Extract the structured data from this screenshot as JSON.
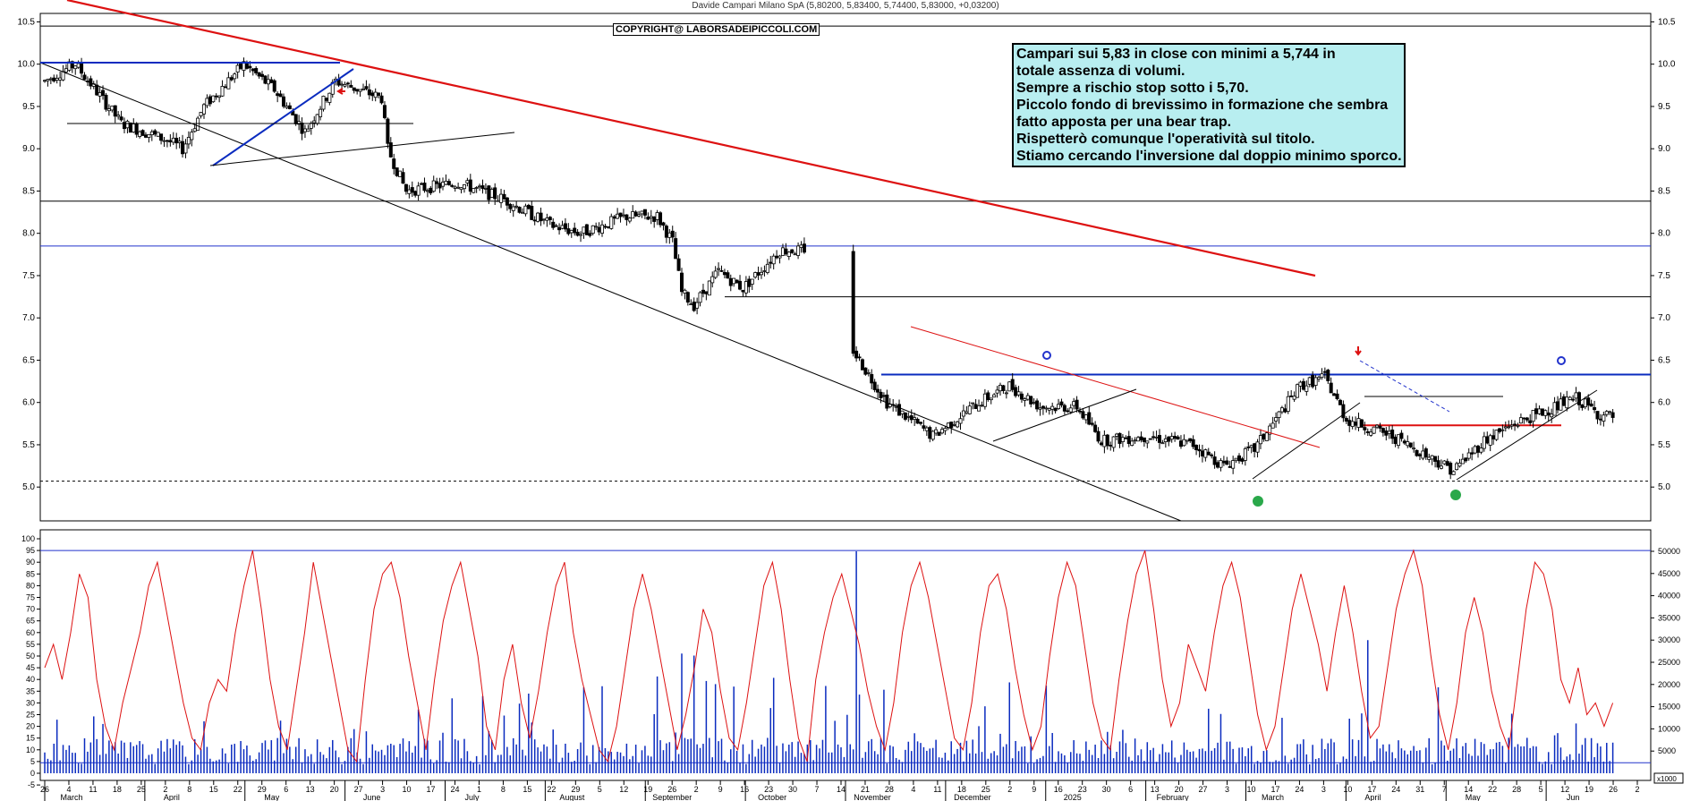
{
  "header": {
    "title": "Davide Campari Milano SpA (5,80200, 5,83400, 5,74400, 5,83000, +0,03200)"
  },
  "copyright": "COPYRIGHT@ LABORSADEIPICCOLI.COM",
  "note": {
    "lines": [
      "Campari sui 5,83 in close con minimi a 5,744 in",
      "totale assenza di volumi.",
      "Sempre a rischio stop sotto i 5,70.",
      "Piccolo fondo di brevissimo in formazione che sembra",
      "fatto apposta per una bear trap.",
      "Rispetterò comunque l'operatività sul titolo.",
      "Stiamo cercando l'inversione dal doppio minimo sporco."
    ]
  },
  "chart_data": [
    {
      "type": "candlestick",
      "title": "Davide Campari Milano SpA (5,80200, 5,83400, 5,74400, 5,83000, +0,03200)",
      "ylim": [
        4.6,
        10.6
      ],
      "y_ticks": [
        "10.5",
        "10.0",
        "9.5",
        "9.0",
        "8.5",
        "8.0",
        "7.5",
        "7.0",
        "6.5",
        "6.0",
        "5.5",
        "5.0"
      ],
      "months": [
        "March",
        "April",
        "May",
        "June",
        "July",
        "August",
        "September",
        "October",
        "November",
        "December",
        "2025",
        "February",
        "March",
        "April",
        "May",
        "Jun"
      ],
      "day_ticks": [
        "26",
        "4",
        "11",
        "18",
        "25",
        "2",
        "8",
        "15",
        "22",
        "29",
        "6",
        "13",
        "20",
        "27",
        "3",
        "10",
        "17",
        "24",
        "1",
        "8",
        "15",
        "22",
        "29",
        "5",
        "12",
        "19",
        "26",
        "2",
        "9",
        "16",
        "23",
        "30",
        "7",
        "14",
        "21",
        "28",
        "4",
        "11",
        "18",
        "25",
        "2",
        "9",
        "16",
        "23",
        "30",
        "6",
        "13",
        "20",
        "27",
        "3",
        "10",
        "17",
        "24",
        "3",
        "10",
        "17",
        "24",
        "31",
        "7",
        "14",
        "22",
        "28",
        "5",
        "12",
        "19",
        "26",
        "2"
      ],
      "horizontal_levels": [
        10.45,
        8.38,
        7.85,
        7.25,
        6.33,
        5.73,
        5.07
      ],
      "price_path": [
        [
          0,
          9.8
        ],
        [
          10,
          10.0
        ],
        [
          25,
          9.3
        ],
        [
          40,
          9.1
        ],
        [
          45,
          9.0
        ],
        [
          52,
          9.5
        ],
        [
          65,
          10.0
        ],
        [
          75,
          9.7
        ],
        [
          85,
          9.2
        ],
        [
          95,
          9.8
        ],
        [
          110,
          9.6
        ],
        [
          112,
          9.0
        ],
        [
          118,
          8.5
        ],
        [
          135,
          8.6
        ],
        [
          150,
          8.4
        ],
        [
          165,
          8.1
        ],
        [
          175,
          8.0
        ],
        [
          190,
          8.2
        ],
        [
          200,
          8.2
        ],
        [
          205,
          7.9
        ],
        [
          208,
          7.3
        ],
        [
          212,
          7.15
        ],
        [
          220,
          7.55
        ],
        [
          228,
          7.35
        ],
        [
          240,
          7.8
        ],
        [
          247,
          7.8
        ],
        [
          265,
          6.55
        ],
        [
          275,
          6.0
        ],
        [
          290,
          5.6
        ],
        [
          305,
          6.0
        ],
        [
          315,
          6.2
        ],
        [
          325,
          5.95
        ],
        [
          337,
          5.95
        ],
        [
          345,
          5.55
        ],
        [
          360,
          5.6
        ],
        [
          375,
          5.5
        ],
        [
          385,
          5.25
        ],
        [
          395,
          5.45
        ],
        [
          410,
          6.2
        ],
        [
          418,
          6.3
        ],
        [
          425,
          5.8
        ],
        [
          440,
          5.6
        ],
        [
          450,
          5.4
        ],
        [
          460,
          5.2
        ],
        [
          470,
          5.55
        ],
        [
          480,
          5.75
        ],
        [
          490,
          5.9
        ],
        [
          500,
          6.05
        ],
        [
          508,
          5.85
        ],
        [
          512,
          5.83
        ]
      ]
    },
    {
      "type": "line",
      "ylim": [
        0,
        100
      ],
      "y_ticks": [
        "100",
        "95",
        "90",
        "85",
        "80",
        "75",
        "70",
        "65",
        "60",
        "55",
        "50",
        "45",
        "40",
        "35",
        "30",
        "25",
        "20",
        "15",
        "10",
        "5",
        "0",
        "-5"
      ],
      "series": [
        {
          "values": [
            45,
            55,
            40,
            60,
            85,
            75,
            40,
            20,
            10,
            30,
            45,
            60,
            80,
            90,
            70,
            50,
            30,
            15,
            10,
            30,
            40,
            35,
            60,
            80,
            95,
            70,
            40,
            20,
            10,
            35,
            60,
            90,
            70,
            50,
            30,
            10,
            5,
            40,
            70,
            85,
            90,
            75,
            50,
            30,
            10,
            40,
            65,
            80,
            90,
            70,
            50,
            20,
            10,
            40,
            55,
            30,
            15,
            35,
            60,
            80,
            90,
            60,
            40,
            25,
            10,
            5,
            20,
            45,
            70,
            85,
            70,
            50,
            30,
            10,
            25,
            45,
            70,
            60,
            35,
            15,
            10,
            30,
            55,
            80,
            90,
            70,
            40,
            15,
            5,
            40,
            60,
            75,
            85,
            70,
            55,
            35,
            20,
            10,
            30,
            60,
            80,
            90,
            75,
            55,
            35,
            15,
            10,
            30,
            60,
            80,
            85,
            70,
            45,
            25,
            10,
            20,
            50,
            75,
            90,
            80,
            55,
            30,
            15,
            10,
            40,
            65,
            85,
            95,
            70,
            40,
            20,
            30,
            55,
            45,
            35,
            60,
            80,
            90,
            75,
            50,
            25,
            10,
            20,
            45,
            70,
            85,
            70,
            55,
            35,
            60,
            80,
            60,
            35,
            15,
            20,
            45,
            70,
            85,
            95,
            80,
            50,
            25,
            10,
            30,
            60,
            75,
            60,
            35,
            20,
            10,
            40,
            70,
            90,
            85,
            70,
            40,
            30,
            45,
            25,
            30,
            20,
            30
          ]
        }
      ],
      "horizontal_levels": [
        95,
        4.5
      ]
    },
    {
      "type": "bar",
      "ylim": [
        0,
        50000
      ],
      "y_ticks": [
        "50000",
        "45000",
        "40000",
        "35000",
        "30000",
        "25000",
        "20000",
        "15000",
        "10000",
        "5000"
      ],
      "unit_label": "x1000"
    }
  ]
}
